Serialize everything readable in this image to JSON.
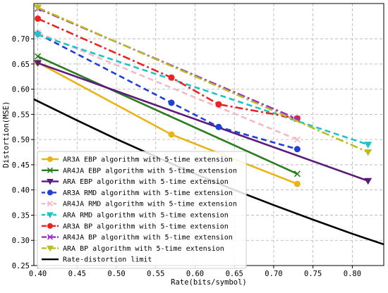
{
  "chart_data": {
    "type": "line",
    "xlabel": "Rate(bits/symbol)",
    "ylabel": "Distortion(MSE)",
    "xlim": [
      0.395,
      0.84
    ],
    "ylim": [
      0.25,
      0.77
    ],
    "xticks": [
      "0.40",
      "0.45",
      "0.50",
      "0.55",
      "0.60",
      "0.65",
      "0.70",
      "0.75",
      "0.80"
    ],
    "yticks": [
      "0.25",
      "0.30",
      "0.35",
      "0.40",
      "0.45",
      "0.50",
      "0.55",
      "0.60",
      "0.65",
      "0.70"
    ],
    "grid": true,
    "legend_position": "lower-left",
    "series": [
      {
        "name": "AR3A EBP algorithm with 5-time extension",
        "color": "#e8b418",
        "style": "solid",
        "marker": "circle",
        "x": [
          0.4,
          0.57,
          0.73
        ],
        "y": [
          0.653,
          0.51,
          0.412
        ]
      },
      {
        "name": "AR4JA EBP algorithm with 5-time extension",
        "color": "#2a7d1e",
        "style": "solid",
        "marker": "x",
        "x": [
          0.4,
          0.73
        ],
        "y": [
          0.665,
          0.432
        ]
      },
      {
        "name": "ARA EBP algorithm with 5-time extension",
        "color": "#5c1a7a",
        "style": "solid",
        "marker": "triangle-down",
        "x": [
          0.4,
          0.82
        ],
        "y": [
          0.652,
          0.418
        ]
      },
      {
        "name": "AR3A RMD algorithm with 5-time extension",
        "color": "#1f3fd6",
        "style": "dashed",
        "marker": "circle",
        "x": [
          0.4,
          0.57,
          0.63,
          0.73
        ],
        "y": [
          0.71,
          0.573,
          0.525,
          0.481
        ]
      },
      {
        "name": "AR4JA RMD algorithm with 5-time extension",
        "color": "#f7b8c6",
        "style": "dashed",
        "marker": "x",
        "x": [
          0.4,
          0.73
        ],
        "y": [
          0.712,
          0.5
        ]
      },
      {
        "name": "ARA RMD algorithm with 5-time extension",
        "color": "#1cc4c8",
        "style": "dashed",
        "marker": "triangle-down",
        "x": [
          0.4,
          0.82
        ],
        "y": [
          0.708,
          0.49
        ]
      },
      {
        "name": "AR3A BP algorithm with 5-time extension",
        "color": "#ee2222",
        "style": "dashdot",
        "marker": "circle",
        "x": [
          0.4,
          0.57,
          0.63,
          0.73
        ],
        "y": [
          0.74,
          0.623,
          0.57,
          0.542
        ]
      },
      {
        "name": "AR4JA BP algorithm with 5-time extension",
        "color": "#9b2fc8",
        "style": "dashdot",
        "marker": "x",
        "x": [
          0.4,
          0.73
        ],
        "y": [
          0.76,
          0.541
        ]
      },
      {
        "name": "ARA BP algorithm with 5-time extension",
        "color": "#bcbd22",
        "style": "dashdot",
        "marker": "triangle-down",
        "x": [
          0.4,
          0.82
        ],
        "y": [
          0.762,
          0.475
        ]
      },
      {
        "name": "Rate-distortion limit",
        "color": "#000000",
        "style": "solid",
        "marker": "none",
        "x": [
          0.395,
          0.45,
          0.5,
          0.55,
          0.6,
          0.65,
          0.7,
          0.75,
          0.8,
          0.84
        ],
        "y": [
          0.58,
          0.538,
          0.501,
          0.466,
          0.432,
          0.4,
          0.37,
          0.341,
          0.313,
          0.292
        ]
      }
    ]
  }
}
